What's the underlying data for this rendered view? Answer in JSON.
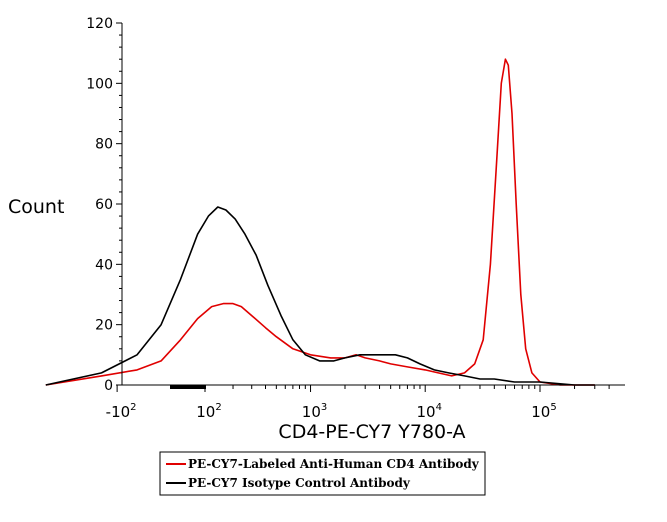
{
  "chart_data": {
    "type": "line",
    "title": "",
    "xlabel": "CD4-PE-CY7 Y780-A",
    "ylabel": "Count",
    "x_scale": "logicle",
    "xlim": [
      -500,
      400000
    ],
    "ylim": [
      0,
      120
    ],
    "grid": false,
    "yticks": [
      0,
      20,
      40,
      60,
      80,
      100,
      120
    ],
    "ytick_labels": [
      "0",
      "20",
      "40",
      "60",
      "80",
      "100",
      "120"
    ],
    "xticks": [
      {
        "base": "-10",
        "exp": "2",
        "value": -100
      },
      {
        "base": "10",
        "exp": "2",
        "value": 100
      },
      {
        "base": "10",
        "exp": "3",
        "value": 1000
      },
      {
        "base": "10",
        "exp": "4",
        "value": 10000
      },
      {
        "base": "10",
        "exp": "5",
        "value": 100000
      }
    ],
    "legend": {
      "placement": "bottom-left",
      "entries": [
        {
          "label": "PE-CY7-Labeled Anti-Human CD4 Antibody",
          "color": "#e00000"
        },
        {
          "label": "PE-CY7 Isotype Control Antibody",
          "color": "#000000"
        }
      ]
    },
    "series": [
      {
        "color": "#e00000",
        "points": [
          [
            -500,
            0
          ],
          [
            -150,
            3
          ],
          [
            -50,
            5
          ],
          [
            0,
            8
          ],
          [
            40,
            15
          ],
          [
            80,
            22
          ],
          [
            120,
            26
          ],
          [
            160,
            27
          ],
          [
            200,
            27
          ],
          [
            240,
            26
          ],
          [
            300,
            23
          ],
          [
            400,
            19
          ],
          [
            500,
            16
          ],
          [
            700,
            12
          ],
          [
            1000,
            10
          ],
          [
            1500,
            9
          ],
          [
            2000,
            9
          ],
          [
            2500,
            10
          ],
          [
            3000,
            9
          ],
          [
            4000,
            8
          ],
          [
            5000,
            7
          ],
          [
            7000,
            6
          ],
          [
            10000,
            5
          ],
          [
            13000,
            4
          ],
          [
            17000,
            3
          ],
          [
            22000,
            4
          ],
          [
            27000,
            7
          ],
          [
            32000,
            15
          ],
          [
            37000,
            40
          ],
          [
            42000,
            75
          ],
          [
            46000,
            100
          ],
          [
            50000,
            108
          ],
          [
            53000,
            106
          ],
          [
            57000,
            90
          ],
          [
            62000,
            60
          ],
          [
            68000,
            30
          ],
          [
            75000,
            12
          ],
          [
            85000,
            4
          ],
          [
            100000,
            1
          ],
          [
            150000,
            0
          ],
          [
            300000,
            0
          ]
        ]
      },
      {
        "color": "#000000",
        "points": [
          [
            -500,
            0
          ],
          [
            -150,
            4
          ],
          [
            -50,
            10
          ],
          [
            0,
            20
          ],
          [
            40,
            35
          ],
          [
            80,
            50
          ],
          [
            110,
            56
          ],
          [
            140,
            59
          ],
          [
            170,
            58
          ],
          [
            210,
            55
          ],
          [
            260,
            50
          ],
          [
            330,
            43
          ],
          [
            420,
            33
          ],
          [
            550,
            23
          ],
          [
            700,
            15
          ],
          [
            900,
            10
          ],
          [
            1200,
            8
          ],
          [
            1600,
            8
          ],
          [
            2000,
            9
          ],
          [
            2700,
            10
          ],
          [
            3500,
            10
          ],
          [
            4500,
            10
          ],
          [
            5500,
            10
          ],
          [
            7000,
            9
          ],
          [
            9000,
            7
          ],
          [
            12000,
            5
          ],
          [
            16000,
            4
          ],
          [
            22000,
            3
          ],
          [
            30000,
            2
          ],
          [
            40000,
            2
          ],
          [
            60000,
            1
          ],
          [
            100000,
            1
          ],
          [
            200000,
            0
          ],
          [
            300000,
            0
          ]
        ]
      }
    ]
  }
}
